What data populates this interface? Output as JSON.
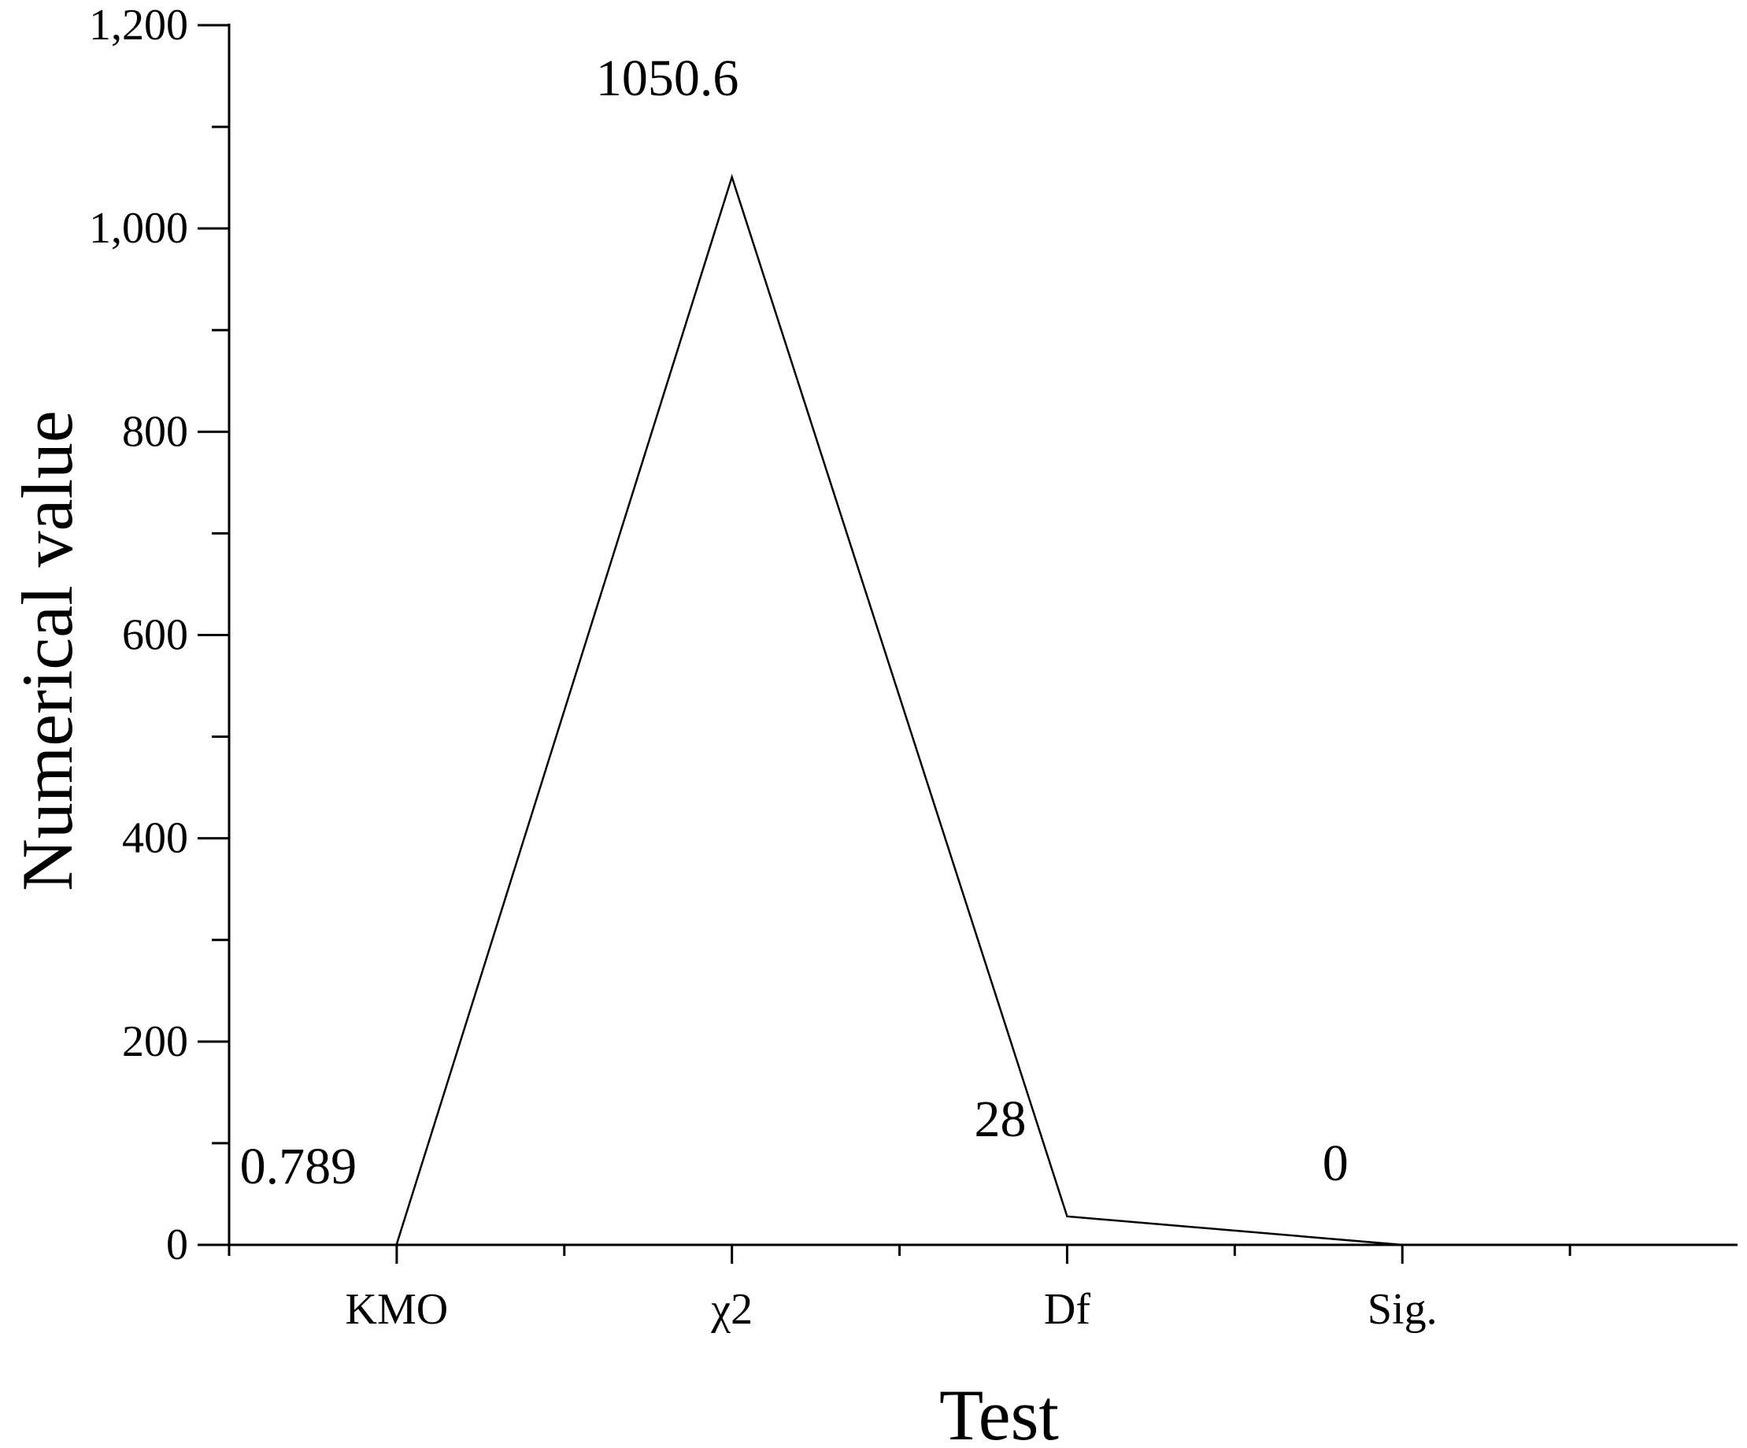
{
  "chart_data": {
    "type": "line",
    "categories": [
      "KMO",
      "χ2",
      "Df",
      "Sig."
    ],
    "series": [
      {
        "values": [
          0.789,
          1050.6,
          28,
          0
        ]
      }
    ],
    "data_labels": [
      "0.789",
      "1050.6",
      "28",
      "0"
    ],
    "xlabel": "Test",
    "ylabel": "Numerical value",
    "ylim": [
      0,
      1200
    ],
    "yticks": [
      0,
      200,
      400,
      600,
      800,
      1000,
      1200
    ],
    "ytick_labels": [
      "0",
      "200",
      "400",
      "600",
      "800",
      "1,000",
      "1,200"
    ],
    "grid": false,
    "line_color": "#000000"
  }
}
